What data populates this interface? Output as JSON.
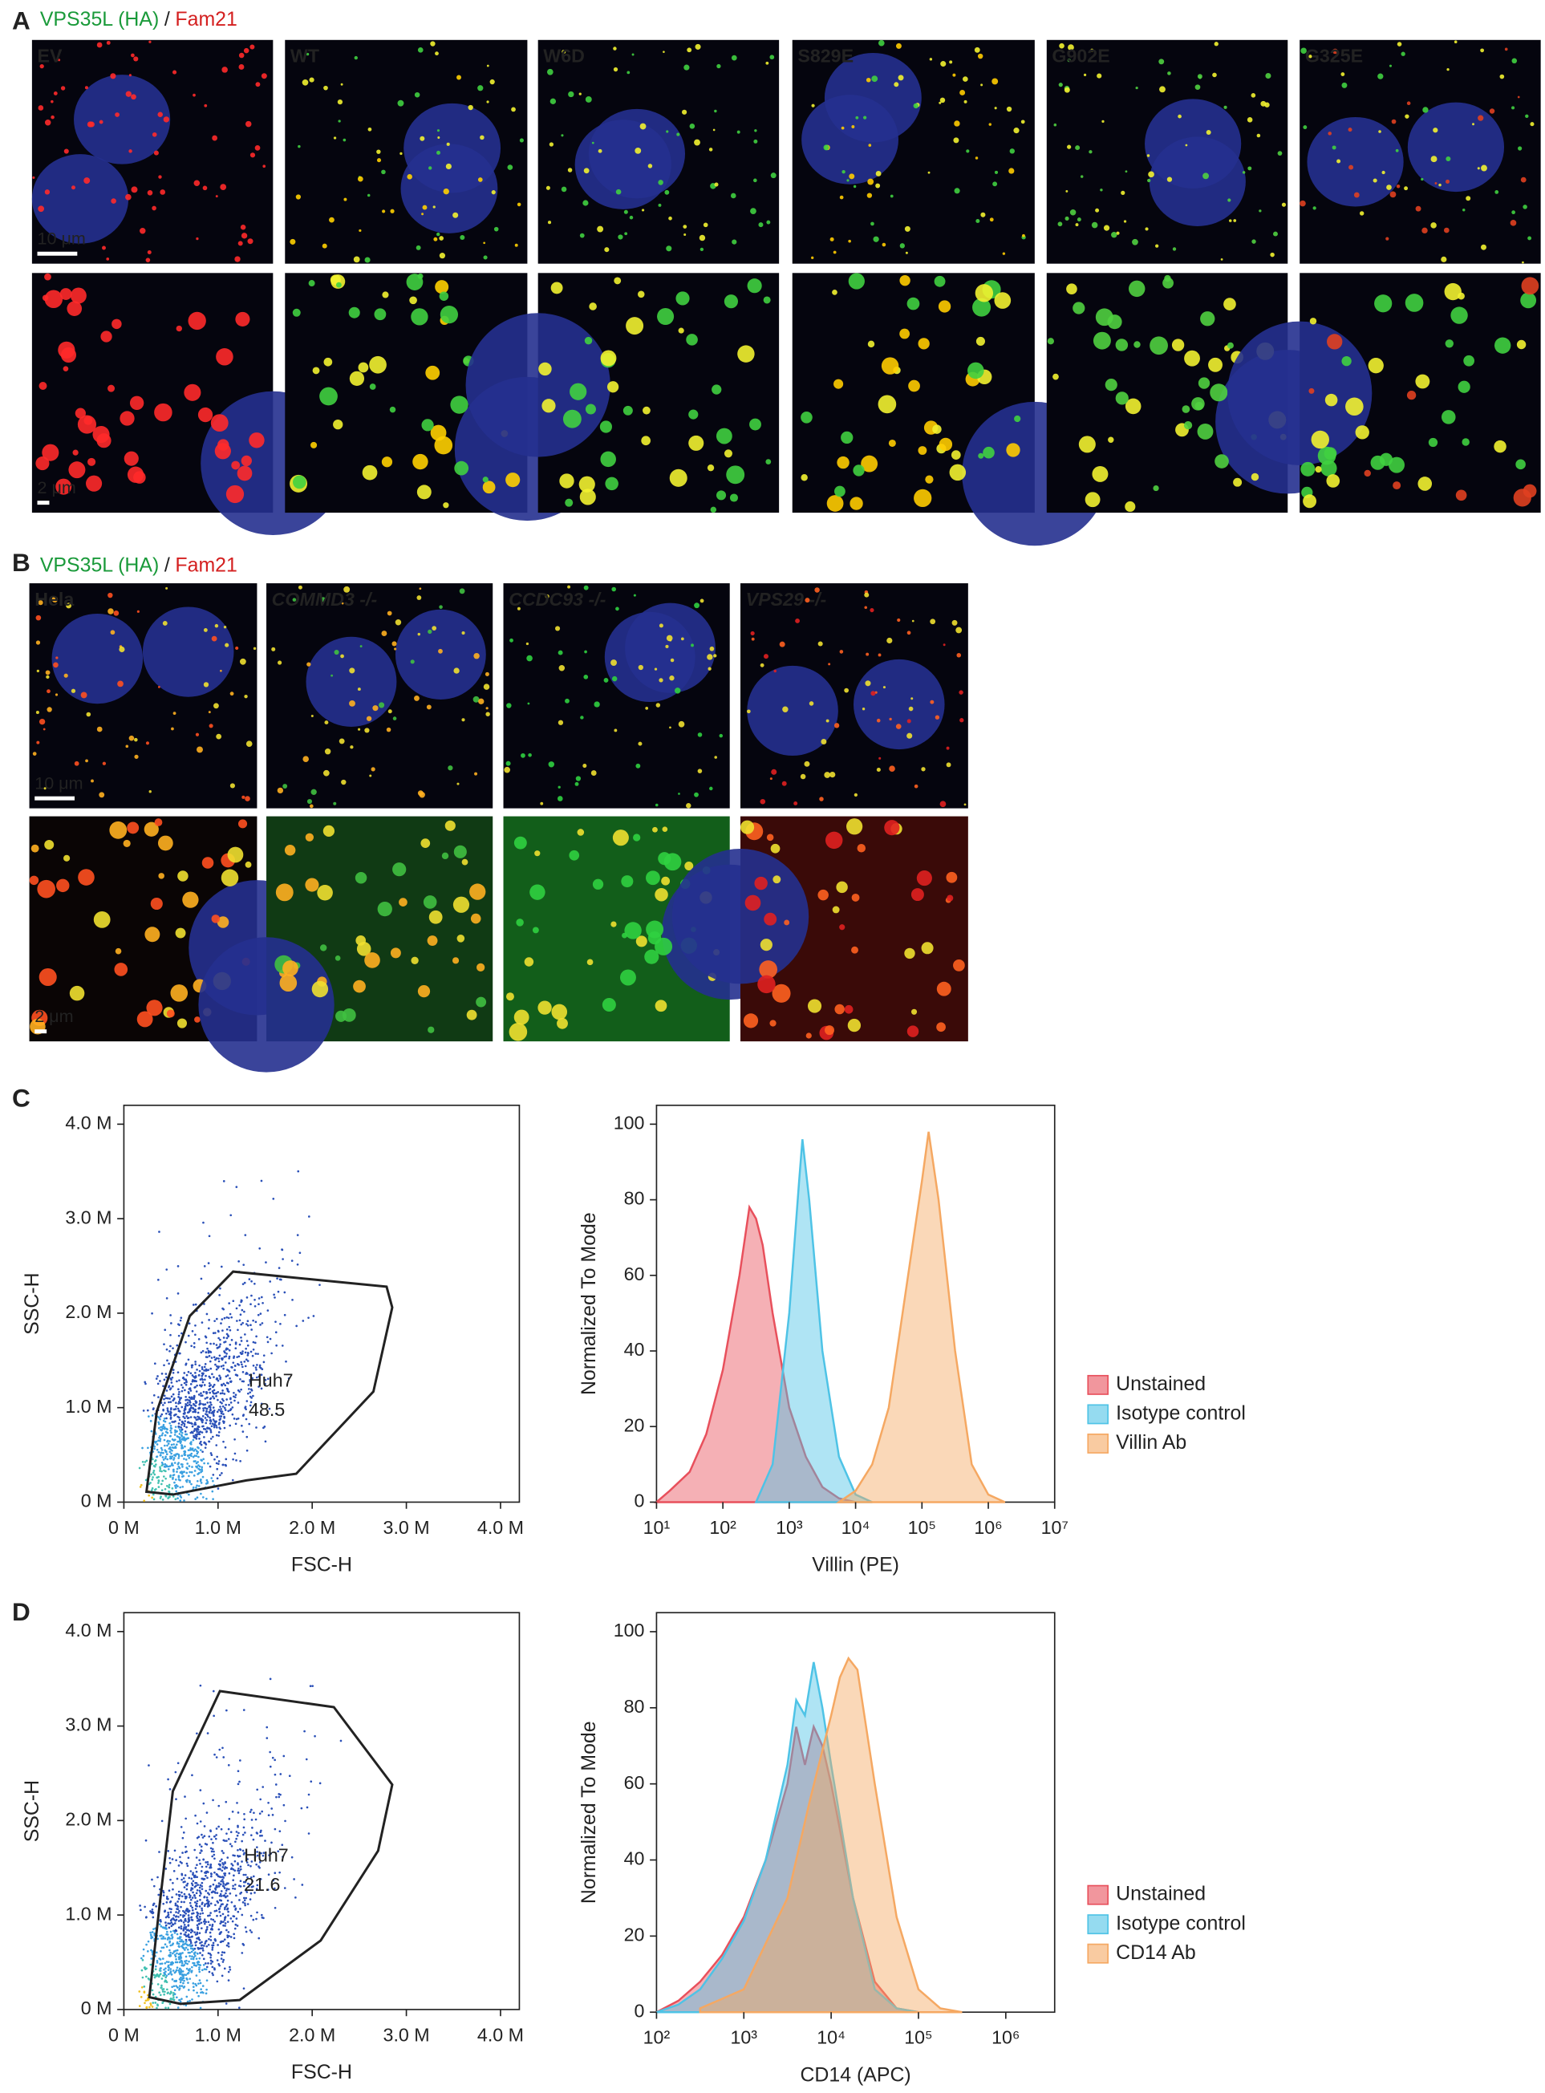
{
  "panel_labels": [
    "A",
    "B",
    "C",
    "D"
  ],
  "microscopy": [
    {
      "title": {
        "green": "VPS35L (HA)",
        "separator": "/",
        "red": "Fam21"
      },
      "scale_bars": [
        "10 μm",
        "2 μm"
      ],
      "samples": [
        "EV",
        "WT",
        "W6D",
        "S829E",
        "G902E",
        "G325E"
      ]
    },
    {
      "title": {
        "green": "VPS35L (HA)",
        "separator": "/",
        "red": "Fam21"
      },
      "scale_bars": [
        "10 μm",
        "2 μm"
      ],
      "samples": [
        "Hela",
        "COMMD3 -/-",
        "CCDC93 -/-",
        "VPS29 -/-"
      ]
    }
  ],
  "chart_data": [
    {
      "type": "scatter",
      "x_label": "FSC-H",
      "y_label": "SSC-H",
      "xlim": [
        0,
        4200000
      ],
      "ylim": [
        0,
        4200000
      ],
      "xticks": [
        {
          "value": 0,
          "label": "0 M"
        },
        {
          "value": 1000000,
          "label": "1.0 M"
        },
        {
          "value": 2000000,
          "label": "2.0 M"
        },
        {
          "value": 3000000,
          "label": "3.0 M"
        },
        {
          "value": 4000000,
          "label": "4.0 M"
        }
      ],
      "yticks": [
        {
          "value": 0,
          "label": "0 M"
        },
        {
          "value": 1000000,
          "label": "1.0 M"
        },
        {
          "value": 2000000,
          "label": "2.0 M"
        },
        {
          "value": 3000000,
          "label": "3.0 M"
        },
        {
          "value": 4000000,
          "label": "4.0 M"
        }
      ],
      "gate": {
        "label": "Huh7",
        "value": 48.5,
        "x": [
          240000,
          350000,
          700000,
          1160000,
          2790000,
          2850000,
          2650000,
          1830000,
          1300000,
          520000
        ],
        "y": [
          110000,
          960000,
          1970000,
          2440000,
          2280000,
          2060000,
          1170000,
          300000,
          230000,
          80000
        ]
      }
    },
    {
      "type": "histogram",
      "x_label": "Villin (PE)",
      "y_label": "Normalized To Mode",
      "log_x": true,
      "xlim": [
        10,
        10000000
      ],
      "ylim": [
        0,
        105
      ],
      "xticks": [
        {
          "value": 10,
          "label": "10¹"
        },
        {
          "value": 100,
          "label": "10²"
        },
        {
          "value": 1000,
          "label": "10³"
        },
        {
          "value": 10000,
          "label": "10⁴"
        },
        {
          "value": 100000,
          "label": "10⁵"
        },
        {
          "value": 1000000,
          "label": "10⁶"
        },
        {
          "value": 10000000,
          "label": "10⁷"
        }
      ],
      "yticks": [
        0,
        20,
        40,
        60,
        80,
        100
      ],
      "legend": "right",
      "series": [
        {
          "name": "Unstained",
          "color": "#e8505c",
          "x": [
            10,
            15.8,
            31.6,
            56.2,
            100,
            178,
            251,
            316,
            398,
            562,
            1000,
            1780,
            3160,
            5620,
            10000
          ],
          "values": [
            0,
            3,
            8,
            18,
            35,
            60,
            78,
            75,
            68,
            50,
            25,
            12,
            4,
            1,
            0
          ]
        },
        {
          "name": "Isotype control",
          "color": "#4ec3e6",
          "x": [
            316,
            562,
            1000,
            1410,
            1580,
            2000,
            3160,
            5620,
            10000,
            17800
          ],
          "values": [
            0,
            10,
            50,
            85,
            96,
            80,
            40,
            12,
            2,
            0
          ]
        },
        {
          "name": "Villin Ab",
          "color": "#f5a862",
          "x": [
            5620,
            10000,
            17800,
            31600,
            56200,
            100000,
            126000,
            178000,
            316000,
            562000,
            1000000,
            1780000
          ],
          "values": [
            0,
            3,
            10,
            25,
            55,
            85,
            98,
            80,
            40,
            10,
            2,
            0
          ]
        }
      ]
    },
    {
      "type": "scatter",
      "x_label": "FSC-H",
      "y_label": "SSC-H",
      "xlim": [
        0,
        4200000
      ],
      "ylim": [
        0,
        4200000
      ],
      "xticks": [
        {
          "value": 0,
          "label": "0 M"
        },
        {
          "value": 1000000,
          "label": "1.0 M"
        },
        {
          "value": 2000000,
          "label": "2.0 M"
        },
        {
          "value": 3000000,
          "label": "3.0 M"
        },
        {
          "value": 4000000,
          "label": "4.0 M"
        }
      ],
      "yticks": [
        {
          "value": 0,
          "label": "0 M"
        },
        {
          "value": 1000000,
          "label": "1.0 M"
        },
        {
          "value": 2000000,
          "label": "2.0 M"
        },
        {
          "value": 3000000,
          "label": "3.0 M"
        },
        {
          "value": 4000000,
          "label": "4.0 M"
        }
      ],
      "gate": {
        "label": "Huh7",
        "value": 21.6,
        "x": [
          1020000,
          2230000,
          2850000,
          2700000,
          2090000,
          1230000,
          600000,
          270000,
          380000,
          520000
        ],
        "y": [
          3370000,
          3200000,
          2380000,
          1680000,
          730000,
          100000,
          60000,
          130000,
          1110000,
          2310000
        ]
      }
    },
    {
      "type": "histogram",
      "x_label": "CD14 (APC)",
      "y_label": "Normalized To Mode",
      "log_x": true,
      "xlim": [
        100,
        3630000
      ],
      "ylim": [
        0,
        105
      ],
      "xticks": [
        {
          "value": 100,
          "label": "10²"
        },
        {
          "value": 1000,
          "label": "10³"
        },
        {
          "value": 10000,
          "label": "10⁴"
        },
        {
          "value": 100000,
          "label": "10⁵"
        },
        {
          "value": 1000000,
          "label": "10⁶"
        }
      ],
      "yticks": [
        0,
        20,
        40,
        60,
        80,
        100
      ],
      "legend": "right",
      "series": [
        {
          "name": "Unstained",
          "color": "#e8505c",
          "x": [
            100,
            178,
            316,
            562,
            1000,
            1780,
            3160,
            3980,
            5010,
            6310,
            7940,
            10000,
            17800,
            31600,
            56200,
            100000
          ],
          "values": [
            0,
            3,
            8,
            15,
            25,
            40,
            60,
            75,
            65,
            75,
            70,
            60,
            30,
            8,
            1,
            0
          ]
        },
        {
          "name": "Isotype control",
          "color": "#4ec3e6",
          "x": [
            100,
            178,
            316,
            562,
            1000,
            1780,
            3160,
            3980,
            5010,
            6310,
            7940,
            10000,
            17800,
            31600,
            56200,
            100000
          ],
          "values": [
            0,
            2,
            6,
            14,
            24,
            40,
            65,
            82,
            78,
            92,
            80,
            65,
            30,
            6,
            1,
            0
          ]
        },
        {
          "name": "CD14 Ab",
          "color": "#f5a862",
          "x": [
            316,
            1000,
            3160,
            5620,
            10000,
            12600,
            15800,
            20000,
            31600,
            56200,
            100000,
            178000,
            316000
          ],
          "values": [
            1,
            6,
            30,
            55,
            78,
            88,
            93,
            90,
            60,
            25,
            6,
            1,
            0
          ]
        }
      ]
    }
  ]
}
